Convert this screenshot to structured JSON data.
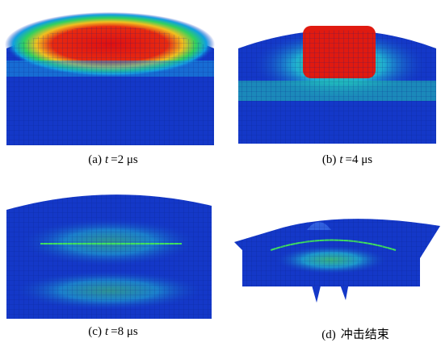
{
  "panels": [
    {
      "label": "(a)",
      "var": "t",
      "rest": "=2 μs"
    },
    {
      "label": "(b)",
      "var": "t",
      "rest": "=4 μs"
    },
    {
      "label": "(c)",
      "var": "t",
      "rest": "=8 μs"
    },
    {
      "label": "(d)",
      "text": "冲击结束"
    }
  ]
}
